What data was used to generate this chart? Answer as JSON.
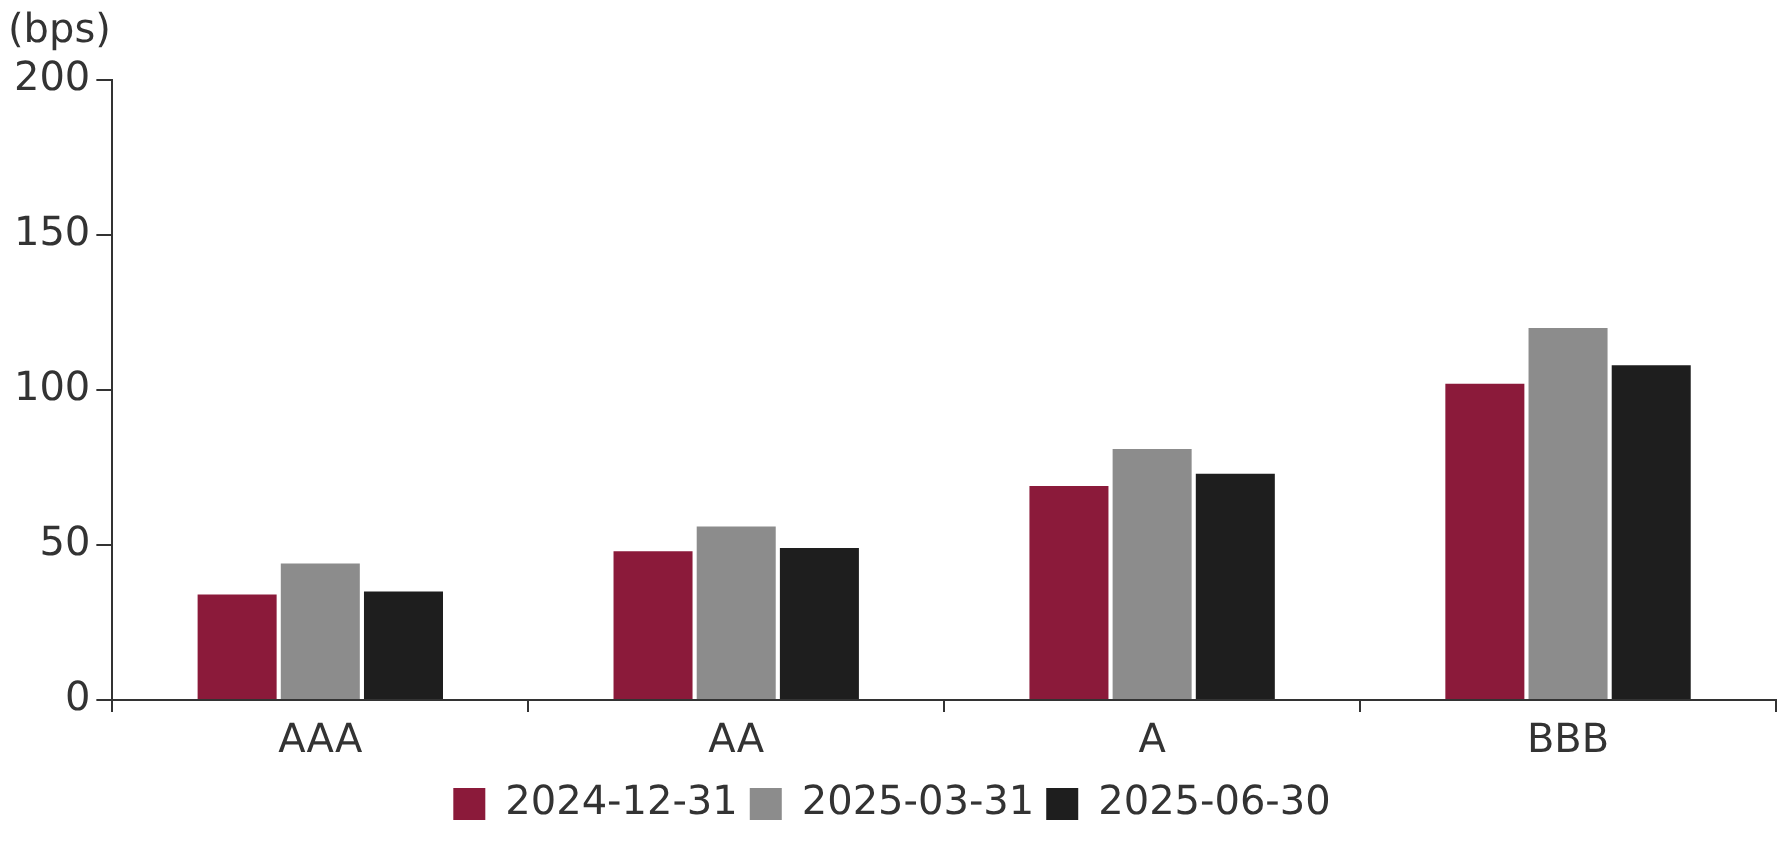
{
  "chart_data": {
    "type": "bar",
    "ylabel": "(bps)",
    "categories": [
      "AAA",
      "AA",
      "A",
      "BBB"
    ],
    "series": [
      {
        "name": "2024-12-31",
        "color": "#8b1a3a",
        "values": [
          34,
          48,
          69,
          102
        ]
      },
      {
        "name": "2025-03-31",
        "color": "#8c8c8c",
        "values": [
          44,
          56,
          81,
          120
        ]
      },
      {
        "name": "2025-06-30",
        "color": "#1e1e1e",
        "values": [
          35,
          49,
          73,
          108
        ]
      }
    ],
    "ylim": [
      0,
      200
    ],
    "yticks": [
      0,
      50,
      100,
      150,
      200
    ],
    "grid": false,
    "legend": "bottom"
  }
}
